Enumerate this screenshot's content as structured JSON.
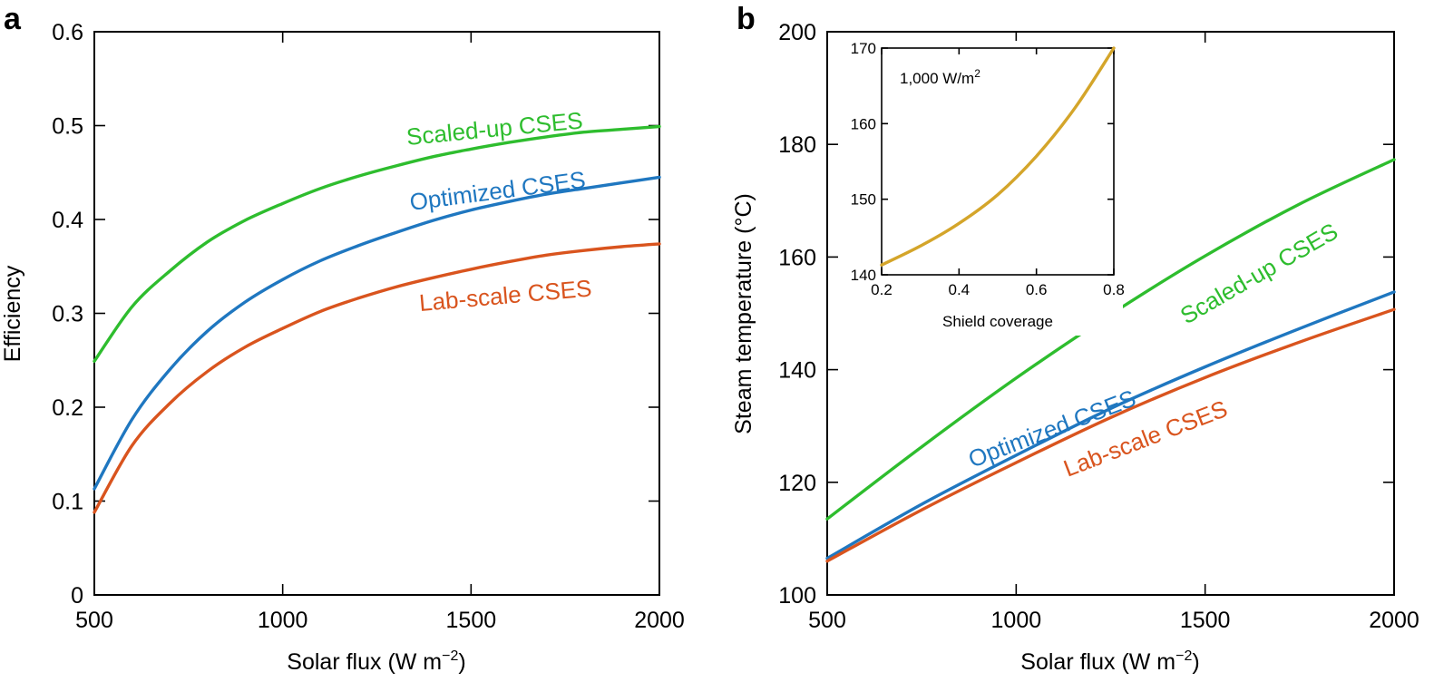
{
  "chart_data": [
    {
      "type": "line",
      "panel": "a",
      "xlabel": "Solar flux (W m",
      "xlabel_sup": "−2",
      "xlabel_close": ")",
      "ylabel": "Efficiency",
      "xlim": [
        500,
        2000
      ],
      "ylim": [
        0,
        0.6
      ],
      "xticks": [
        500,
        1000,
        1500,
        2000
      ],
      "xtick_labels": [
        "500",
        "1000",
        "1500",
        "2000"
      ],
      "yticks": [
        0,
        0.1,
        0.2,
        0.3,
        0.4,
        0.5,
        0.6
      ],
      "ytick_labels": [
        "0",
        "0.1",
        "0.2",
        "0.3",
        "0.4",
        "0.5",
        "0.6"
      ],
      "grid": false,
      "series": [
        {
          "name": "Scaled-up CSES",
          "color": "#2ebd2e",
          "x": [
            500,
            600,
            700,
            800,
            900,
            1000,
            1100,
            1200,
            1300,
            1400,
            1500,
            1600,
            1700,
            1800,
            1900,
            2000
          ],
          "values": [
            0.249,
            0.307,
            0.345,
            0.376,
            0.399,
            0.417,
            0.433,
            0.446,
            0.457,
            0.467,
            0.475,
            0.482,
            0.488,
            0.493,
            0.496,
            0.499
          ]
        },
        {
          "name": "Optimized CSES",
          "color": "#1f77c0",
          "x": [
            500,
            600,
            700,
            800,
            900,
            1000,
            1100,
            1200,
            1300,
            1400,
            1500,
            1600,
            1700,
            1800,
            1900,
            2000
          ],
          "values": [
            0.113,
            0.187,
            0.24,
            0.281,
            0.312,
            0.336,
            0.356,
            0.372,
            0.386,
            0.399,
            0.41,
            0.419,
            0.427,
            0.433,
            0.439,
            0.445
          ]
        },
        {
          "name": "Lab-scale CSES",
          "color": "#d9541e",
          "x": [
            500,
            600,
            700,
            800,
            900,
            1000,
            1100,
            1200,
            1300,
            1400,
            1500,
            1600,
            1700,
            1800,
            1900,
            2000
          ],
          "values": [
            0.088,
            0.159,
            0.204,
            0.238,
            0.264,
            0.284,
            0.302,
            0.316,
            0.328,
            0.338,
            0.347,
            0.355,
            0.362,
            0.367,
            0.371,
            0.374
          ]
        }
      ]
    },
    {
      "type": "line",
      "panel": "b",
      "xlabel": "Solar flux (W m",
      "xlabel_sup": "−2",
      "xlabel_close": ")",
      "ylabel": "Steam temperature (°C)",
      "xlim": [
        500,
        2000
      ],
      "ylim": [
        100,
        200
      ],
      "xticks": [
        500,
        1000,
        1500,
        2000
      ],
      "xtick_labels": [
        "500",
        "1000",
        "1500",
        "2000"
      ],
      "yticks": [
        100,
        120,
        140,
        160,
        180,
        200
      ],
      "ytick_labels": [
        "100",
        "120",
        "140",
        "160",
        "180",
        "200"
      ],
      "grid": false,
      "series": [
        {
          "name": "Scaled-up CSES",
          "color": "#2ebd2e",
          "x": [
            500,
            750,
            1000,
            1250,
            1500,
            1750,
            2000
          ],
          "values": [
            113.5,
            126.3,
            138.5,
            149.8,
            160.2,
            169.4,
            177.3
          ]
        },
        {
          "name": "Optimized CSES",
          "color": "#1f77c0",
          "x": [
            500,
            750,
            1000,
            1250,
            1500,
            1750,
            2000
          ],
          "values": [
            106.5,
            116.1,
            124.8,
            133.1,
            140.5,
            147.3,
            153.8
          ]
        },
        {
          "name": "Lab-scale CSES",
          "color": "#d9541e",
          "x": [
            500,
            750,
            1000,
            1250,
            1500,
            1750,
            2000
          ],
          "values": [
            106.0,
            115.1,
            123.5,
            131.5,
            138.6,
            144.9,
            150.7
          ]
        }
      ],
      "inset": {
        "type": "line",
        "xlabel": "Shield coverage",
        "annotation": "1,000 W/m",
        "annotation_sup": "2",
        "xlim": [
          0.2,
          0.8
        ],
        "ylim": [
          140,
          170
        ],
        "xticks": [
          0.2,
          0.4,
          0.6,
          0.8
        ],
        "xtick_labels": [
          "0.2",
          "0.4",
          "0.6",
          "0.8"
        ],
        "yticks": [
          140,
          150,
          160,
          170
        ],
        "ytick_labels": [
          "140",
          "150",
          "160",
          "170"
        ],
        "series": [
          {
            "name": "1,000 W/m2",
            "color": "#d4a52a",
            "x": [
              0.2,
              0.3,
              0.4,
              0.5,
              0.6,
              0.7,
              0.8
            ],
            "values": [
              141.3,
              143.8,
              146.8,
              150.6,
              155.7,
              162.1,
              170.0
            ]
          }
        ]
      }
    }
  ]
}
